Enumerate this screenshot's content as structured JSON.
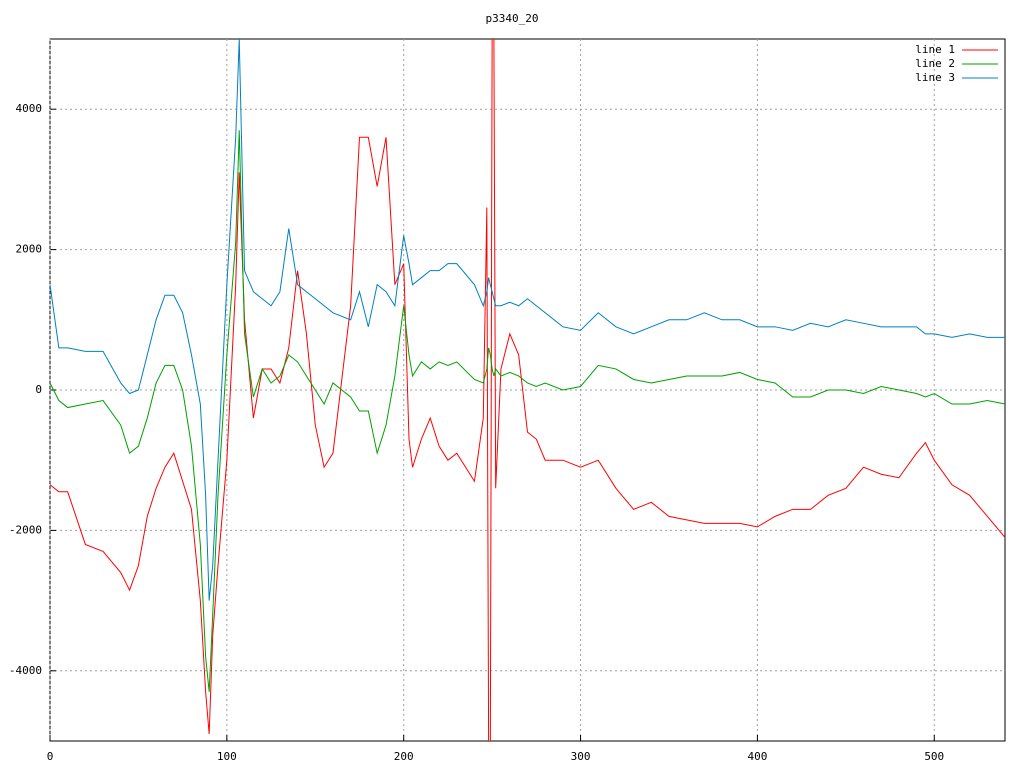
{
  "chart_data": {
    "type": "line",
    "title": "p3340_20",
    "x": [
      0,
      5,
      10,
      20,
      30,
      40,
      45,
      50,
      55,
      60,
      65,
      70,
      75,
      80,
      85,
      88,
      90,
      92,
      95,
      100,
      105,
      107,
      110,
      115,
      120,
      125,
      130,
      135,
      140,
      145,
      150,
      155,
      160,
      170,
      175,
      180,
      185,
      190,
      195,
      200,
      203,
      205,
      210,
      215,
      220,
      225,
      230,
      240,
      245,
      247,
      248,
      249,
      250,
      251,
      252,
      255,
      260,
      265,
      270,
      275,
      280,
      290,
      300,
      310,
      320,
      330,
      340,
      350,
      360,
      370,
      380,
      390,
      400,
      410,
      420,
      430,
      440,
      450,
      460,
      470,
      480,
      490,
      495,
      500,
      510,
      520,
      530,
      540
    ],
    "series": [
      {
        "name": "line 1",
        "color": "#ff0000",
        "values": [
          -1350,
          -1450,
          -1450,
          -2200,
          -2300,
          -2600,
          -2850,
          -2500,
          -1800,
          -1400,
          -1100,
          -900,
          -1300,
          -1700,
          -3000,
          -4300,
          -4900,
          -3500,
          -2500,
          -1000,
          1500,
          3100,
          1000,
          -400,
          300,
          300,
          100,
          600,
          1700,
          800,
          -500,
          -1100,
          -900,
          1200,
          3600,
          3600,
          2900,
          3600,
          1500,
          1800,
          -700,
          -1100,
          -700,
          -400,
          -800,
          -1000,
          -900,
          -1300,
          -400,
          2600,
          -5000,
          -5000,
          5000,
          5000,
          -1400,
          300,
          800,
          500,
          -600,
          -700,
          -1000,
          -1000,
          -1100,
          -1000,
          -1400,
          -1700,
          -1600,
          -1800,
          -1850,
          -1900,
          -1900,
          -1900,
          -1950,
          -1800,
          -1700,
          -1700,
          -1500,
          -1400,
          -1100,
          -1200,
          -1250,
          -900,
          -750,
          -1000,
          -1350,
          -1500,
          -1800,
          -2100
        ]
      },
      {
        "name": "line 2",
        "color": "#00a000",
        "values": [
          100,
          -150,
          -250,
          -200,
          -150,
          -500,
          -900,
          -800,
          -400,
          100,
          350,
          350,
          0,
          -800,
          -2200,
          -3800,
          -4300,
          -3200,
          -1500,
          500,
          2100,
          3700,
          800,
          -100,
          300,
          100,
          200,
          500,
          400,
          200,
          0,
          -200,
          100,
          -100,
          -300,
          -300,
          -900,
          -500,
          200,
          1200,
          500,
          200,
          400,
          300,
          400,
          350,
          400,
          150,
          100,
          300,
          600,
          500,
          300,
          200,
          300,
          200,
          250,
          200,
          100,
          50,
          100,
          0,
          50,
          350,
          300,
          150,
          100,
          150,
          200,
          200,
          200,
          250,
          150,
          100,
          -100,
          -100,
          0,
          0,
          -50,
          50,
          0,
          -50,
          -100,
          -50,
          -200,
          -200,
          -150,
          -200
        ]
      },
      {
        "name": "line 3",
        "color": "#0080c0",
        "values": [
          1500,
          600,
          600,
          550,
          550,
          100,
          -50,
          0,
          500,
          1000,
          1350,
          1350,
          1100,
          500,
          -200,
          -1500,
          -3000,
          -2500,
          -1000,
          1500,
          3600,
          5000,
          1700,
          1400,
          1300,
          1200,
          1400,
          2300,
          1500,
          1400,
          1300,
          1200,
          1100,
          1000,
          1400,
          900,
          1500,
          1400,
          1200,
          2200,
          1800,
          1500,
          1600,
          1700,
          1700,
          1800,
          1800,
          1500,
          1200,
          1400,
          1600,
          1500,
          1400,
          1300,
          1200,
          1200,
          1250,
          1200,
          1300,
          1200,
          1100,
          900,
          850,
          1100,
          900,
          800,
          900,
          1000,
          1000,
          1100,
          1000,
          1000,
          900,
          900,
          850,
          950,
          900,
          1000,
          950,
          900,
          900,
          900,
          800,
          800,
          750,
          800,
          750,
          750
        ]
      }
    ],
    "xlim": [
      0,
      540
    ],
    "ylim": [
      -5000,
      5000
    ],
    "xticks": [
      0,
      100,
      200,
      300,
      400,
      500
    ],
    "yticks": [
      -4000,
      -2000,
      0,
      2000,
      4000
    ],
    "grid": true,
    "legend": "top-right"
  }
}
